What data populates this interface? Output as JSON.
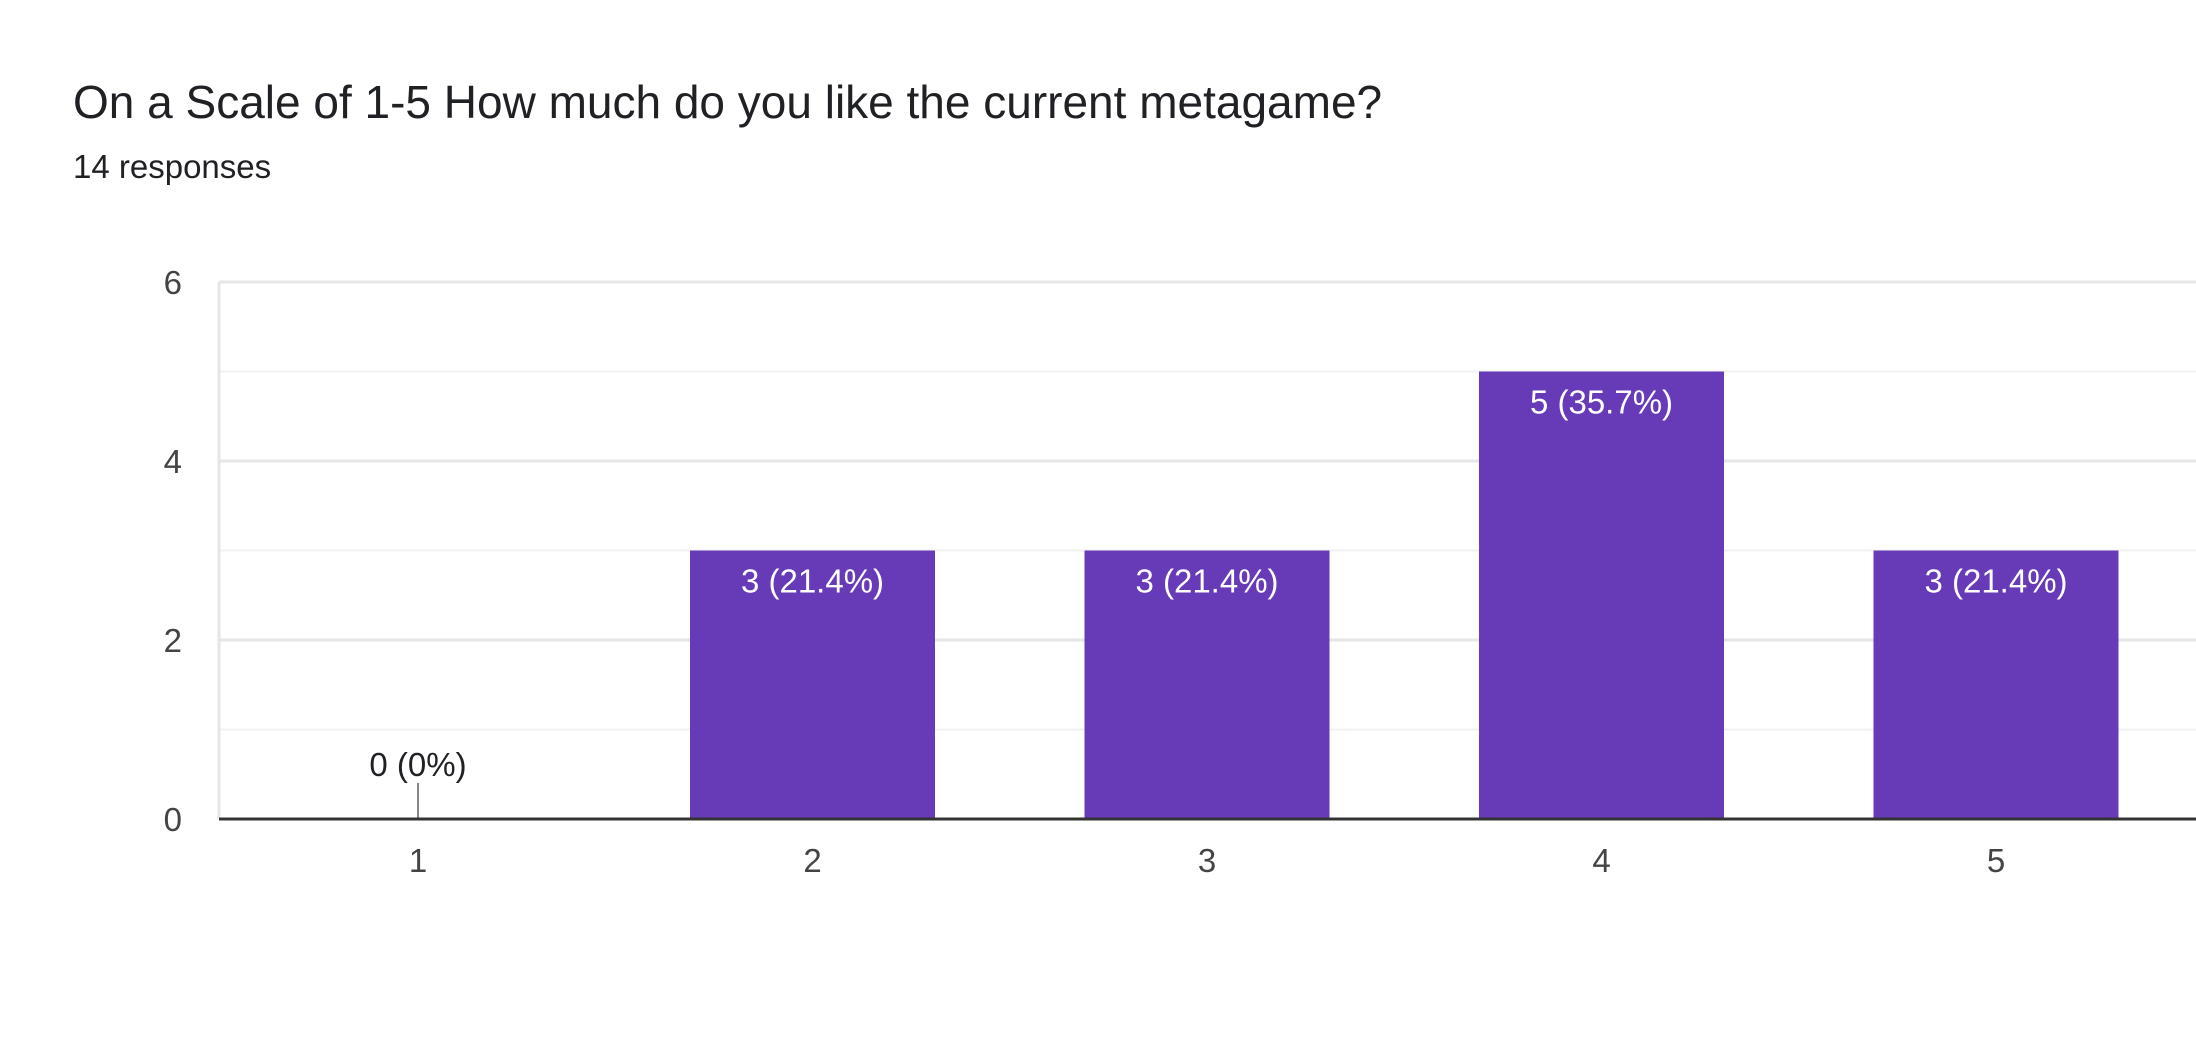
{
  "question": {
    "title": "On a Scale of 1-5 How much do you like the current metagame?",
    "responses": "14 responses"
  },
  "colors": {
    "bar": "#673ab7",
    "text": "#202124",
    "axis": "#333333",
    "grid_major": "#e6e6e6",
    "grid_minor": "#f1f1f1"
  },
  "chart_data": {
    "type": "bar",
    "categories": [
      "1",
      "2",
      "3",
      "4",
      "5"
    ],
    "values": [
      0,
      3,
      3,
      5,
      3
    ],
    "data_labels": [
      "0 (0%)",
      "3 (21.4%)",
      "3 (21.4%)",
      "5 (35.7%)",
      "3 (21.4%)"
    ],
    "ylim": [
      0,
      6
    ],
    "yticks": [
      0,
      2,
      4,
      6
    ],
    "minor_grid_step": 1,
    "title": "",
    "xlabel": "",
    "ylabel": "",
    "grid": true,
    "legend": "none"
  }
}
